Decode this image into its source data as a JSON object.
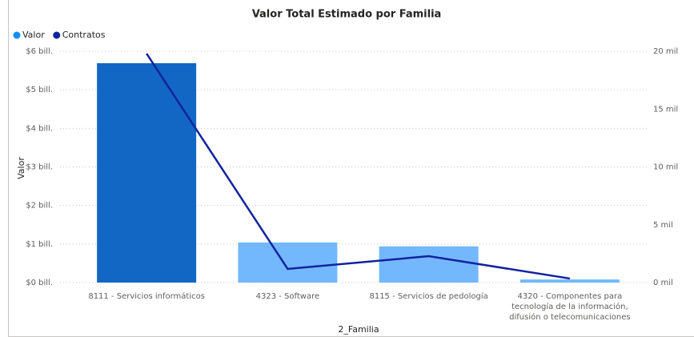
{
  "chart_data": {
    "type": "bar-line",
    "title": "Valor Total Estimado por Familia",
    "x_label": "2_Familia",
    "y_label": "Valor",
    "categories": [
      "8111 - Servicios informáticos",
      "4323 - Software",
      "8115 - Servicios de pedología",
      "4320 - Componentes para tecnología de la información, difusión o telecomunicaciones"
    ],
    "series": [
      {
        "name": "Valor",
        "color": "#118dff",
        "bar_colors": [
          "#1267c4",
          "#73b8fd",
          "#73b8fd",
          "#73b8fd"
        ],
        "values": [
          5.69,
          1.04,
          0.94,
          0.08
        ]
      },
      {
        "name": "Contratos",
        "color": "#12239e",
        "axis": "y2",
        "values": [
          19.8,
          1.18,
          2.28,
          0.35
        ]
      }
    ],
    "ylim": [
      0,
      6
    ],
    "yticks": [
      {
        "value": 0,
        "label": "$0 bill."
      },
      {
        "value": 1,
        "label": "$1 bill."
      },
      {
        "value": 2,
        "label": "$2 bill."
      },
      {
        "value": 3,
        "label": "$3 bill."
      },
      {
        "value": 4,
        "label": "$4 bill."
      },
      {
        "value": 5,
        "label": "$5 bill."
      },
      {
        "value": 6,
        "label": "$6 bill."
      }
    ],
    "y2lim": [
      0,
      20
    ],
    "y2ticks": [
      {
        "value": 0,
        "label": "0 mil"
      },
      {
        "value": 5,
        "label": "5 mil"
      },
      {
        "value": 10,
        "label": "10 mil"
      },
      {
        "value": 15,
        "label": "15 mil"
      },
      {
        "value": 20,
        "label": "20 mil"
      }
    ],
    "grid": true
  }
}
